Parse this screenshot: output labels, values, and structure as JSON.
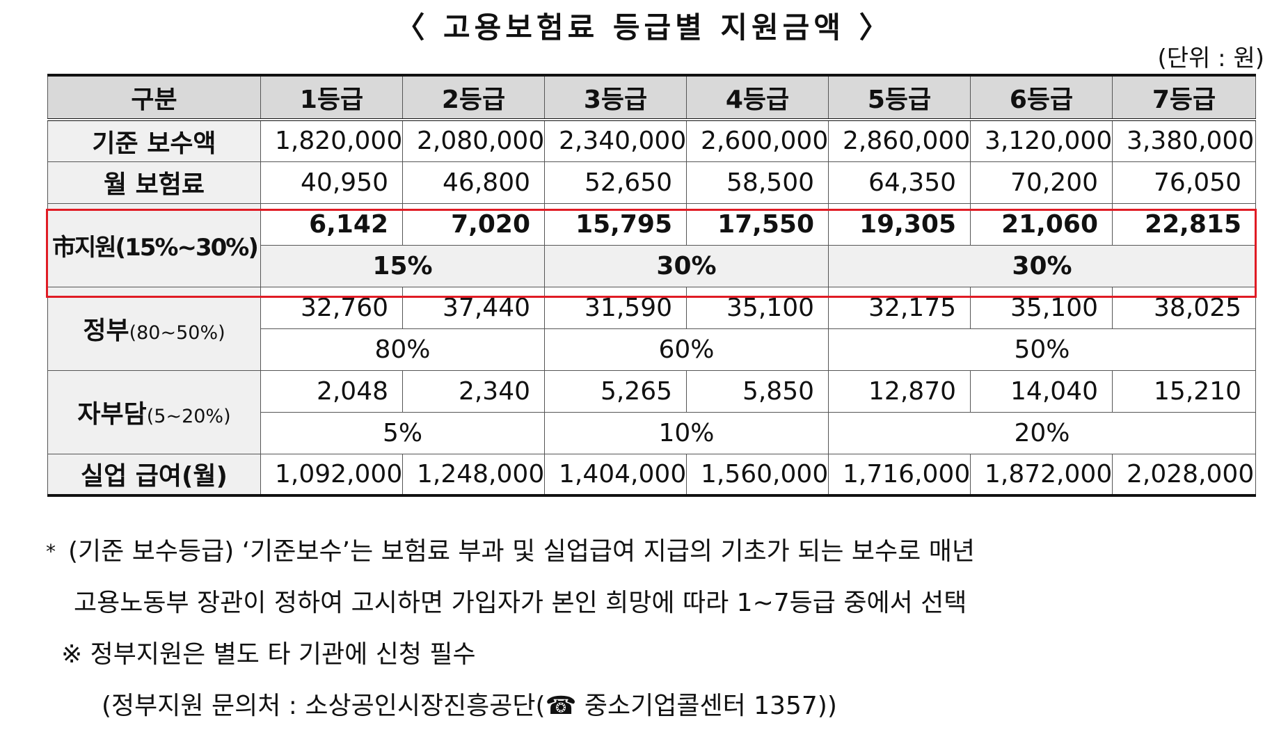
{
  "title": "〈 고용보험료 등급별 지원금액 〉",
  "unit": "(단위 : 원)",
  "table": {
    "headers": [
      "구분",
      "1등급",
      "2등급",
      "3등급",
      "4등급",
      "5등급",
      "6등급",
      "7등급"
    ],
    "base_pay": {
      "label": "기준 보수액",
      "values": [
        "1,820,000",
        "2,080,000",
        "2,340,000",
        "2,600,000",
        "2,860,000",
        "3,120,000",
        "3,380,000"
      ]
    },
    "monthly_premium": {
      "label": "월 보험료",
      "values": [
        "40,950",
        "46,800",
        "52,650",
        "58,500",
        "64,350",
        "70,200",
        "76,050"
      ]
    },
    "city_support": {
      "label": "市지원(15%~30%)",
      "values": [
        "6,142",
        "7,020",
        "15,795",
        "17,550",
        "19,305",
        "21,060",
        "22,815"
      ],
      "percents": [
        "15%",
        "30%",
        "30%"
      ]
    },
    "government": {
      "label": "정부",
      "label_small": "(80~50%)",
      "values": [
        "32,760",
        "37,440",
        "31,590",
        "35,100",
        "32,175",
        "35,100",
        "38,025"
      ],
      "percents": [
        "80%",
        "60%",
        "50%"
      ]
    },
    "self_pay": {
      "label": "자부담",
      "label_small": "(5~20%)",
      "values": [
        "2,048",
        "2,340",
        "5,265",
        "5,850",
        "12,870",
        "14,040",
        "15,210"
      ],
      "percents": [
        "5%",
        "10%",
        "20%"
      ]
    },
    "unemployment": {
      "label": "실업 급여(월)",
      "values": [
        "1,092,000",
        "1,248,000",
        "1,404,000",
        "1,560,000",
        "1,716,000",
        "1,872,000",
        "2,028,000"
      ]
    }
  },
  "notes": {
    "star": "*",
    "line1": "(기준 보수등급) ‘기준보수’는 보험료 부과 및 실업급여 지급의 기초가 되는 보수로 매년",
    "line2": "고용노동부 장관이 정하여 고시하면 가입자가 본인 희망에 따라 1~7등급 중에서 선택",
    "line3": "※ 정부지원은 별도 타 기관에 신청 필수",
    "line4": "(정부지원 문의처 : 소상공인시장진흥공단(☎ 중소기업콜센터 1357))"
  },
  "colors": {
    "highlight_border": "#e01b24",
    "header_bg": "#d9d9d9",
    "label_bg": "#f0f0f0"
  }
}
